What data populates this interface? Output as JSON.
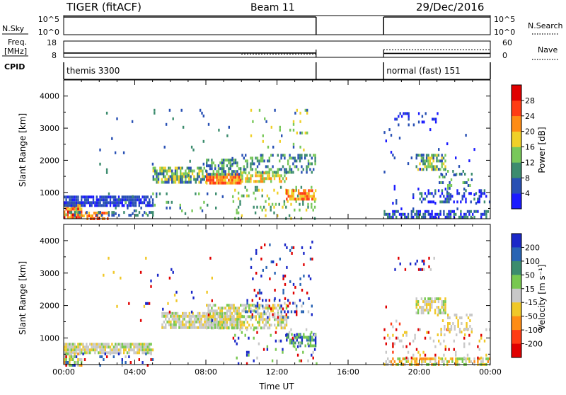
{
  "header": {
    "radar": "TIGER (fitACF)",
    "beam": "Beam 11",
    "date": "29/Dec/2016"
  },
  "top_panels": {
    "nsky_label": "N.Sky",
    "nsearch_label": "N.Search",
    "freq_label_1": "Freq.",
    "freq_label_2": "[MHz]",
    "nave_label": "Nave",
    "cpid_label": "CPID",
    "nsky_ticks": [
      "10^5",
      "10^0"
    ],
    "nsearch_ticks": [
      "10^5",
      "10^0"
    ],
    "freq_ticks": [
      "18",
      "8"
    ],
    "nave_ticks": [
      "60",
      "0"
    ],
    "cpid_segments": [
      {
        "label": "themis 3300",
        "start_h": 0.0,
        "end_h": 14.2
      },
      {
        "label": "normal (fast) 151",
        "start_h": 18.0,
        "end_h": 24.0
      }
    ],
    "freq_data": [
      {
        "start_h": 0.0,
        "end_h": 10.0,
        "value": 10.2
      },
      {
        "start_h": 10.0,
        "end_h": 14.2,
        "value": 10.2
      },
      {
        "start_h": 18.0,
        "end_h": 24.0,
        "value": 10.0
      }
    ],
    "nave_data": [
      {
        "start_h": 10.0,
        "end_h": 14.2,
        "value": 12
      },
      {
        "start_h": 18.0,
        "end_h": 24.0,
        "value": 28
      }
    ]
  },
  "chart_data": [
    {
      "type": "heatmap",
      "name": "power",
      "ylabel": "Slant Range [km]",
      "ylim": [
        180,
        4500
      ],
      "yticks": [
        "1000",
        "2000",
        "3000",
        "4000"
      ],
      "ytick_values": [
        1000,
        2000,
        3000,
        4000
      ],
      "x_range_hours": [
        0,
        24
      ],
      "colorbar_label": "Power [dB]",
      "colorbar_ticks": [
        "4",
        "8",
        "12",
        "16",
        "20",
        "24",
        "28"
      ],
      "colorbar_colors": [
        "#1a1aff",
        "#2850b4",
        "#3c8c6e",
        "#78c85a",
        "#f0d028",
        "#ff8c14",
        "#ff3c14",
        "#e00000"
      ],
      "scatter_regions": [
        {
          "t0": 0.0,
          "t1": 1.0,
          "r0": 200,
          "r1": 700,
          "cls": [
            7,
            6,
            5,
            4,
            3
          ],
          "dens": 0.9
        },
        {
          "t0": 1.0,
          "t1": 2.5,
          "r0": 200,
          "r1": 400,
          "cls": [
            6,
            5,
            4
          ],
          "dens": 0.6
        },
        {
          "t0": 0.0,
          "t1": 5.0,
          "r0": 600,
          "r1": 900,
          "cls": [
            1,
            0,
            1
          ],
          "dens": 0.8
        },
        {
          "t0": 0.2,
          "t1": 5.0,
          "r0": 280,
          "r1": 420,
          "cls": [
            1,
            2
          ],
          "dens": 0.35
        },
        {
          "t0": 2.5,
          "t1": 9.5,
          "r0": 300,
          "r1": 1000,
          "cls": [
            1,
            2,
            3
          ],
          "dens": 0.05
        },
        {
          "t0": 5.0,
          "t1": 8.0,
          "r0": 1300,
          "r1": 1800,
          "cls": [
            1,
            2,
            3,
            4
          ],
          "dens": 0.7
        },
        {
          "t0": 8.0,
          "t1": 10.0,
          "r0": 1300,
          "r1": 1600,
          "cls": [
            6,
            5,
            4
          ],
          "dens": 0.85
        },
        {
          "t0": 8.0,
          "t1": 10.0,
          "r0": 1600,
          "r1": 2050,
          "cls": [
            1,
            2,
            3
          ],
          "dens": 0.6
        },
        {
          "t0": 10.0,
          "t1": 12.5,
          "r0": 1300,
          "r1": 1650,
          "cls": [
            5,
            4,
            3
          ],
          "dens": 0.6
        },
        {
          "t0": 10.0,
          "t1": 14.2,
          "r0": 1650,
          "r1": 2200,
          "cls": [
            1,
            2,
            3
          ],
          "dens": 0.35
        },
        {
          "t0": 9.5,
          "t1": 14.2,
          "r0": 200,
          "r1": 1200,
          "cls": [
            3,
            4,
            2
          ],
          "dens": 0.12
        },
        {
          "t0": 12.5,
          "t1": 14.2,
          "r0": 800,
          "r1": 1100,
          "cls": [
            6,
            5,
            4
          ],
          "dens": 0.7
        },
        {
          "t0": 10.5,
          "t1": 13.8,
          "r0": 2300,
          "r1": 3600,
          "cls": [
            3,
            4,
            1
          ],
          "dens": 0.07
        },
        {
          "t0": 2.0,
          "t1": 9.5,
          "r0": 1500,
          "r1": 3600,
          "cls": [
            1,
            2
          ],
          "dens": 0.025
        },
        {
          "t0": 18.0,
          "t1": 24.0,
          "r0": 200,
          "r1": 450,
          "cls": [
            0,
            1,
            2
          ],
          "dens": 0.55
        },
        {
          "t0": 20.0,
          "t1": 24.0,
          "r0": 700,
          "r1": 1100,
          "cls": [
            0,
            1,
            2
          ],
          "dens": 0.35
        },
        {
          "t0": 19.8,
          "t1": 21.5,
          "r0": 1700,
          "r1": 2200,
          "cls": [
            3,
            2,
            4,
            1
          ],
          "dens": 0.65
        },
        {
          "t0": 21.0,
          "t1": 23.0,
          "r0": 1100,
          "r1": 1700,
          "cls": [
            1,
            2,
            3
          ],
          "dens": 0.2
        },
        {
          "t0": 18.6,
          "t1": 21.0,
          "r0": 3100,
          "r1": 3500,
          "cls": [
            0,
            1
          ],
          "dens": 0.18
        },
        {
          "t0": 18.0,
          "t1": 23.5,
          "r0": 500,
          "r1": 3000,
          "cls": [
            0,
            1
          ],
          "dens": 0.025
        }
      ]
    },
    {
      "type": "heatmap",
      "name": "velocity",
      "ylabel": "Slant Range [km]",
      "xlabel": "Time UT",
      "ylim": [
        180,
        4500
      ],
      "yticks": [
        "1000",
        "2000",
        "3000",
        "4000"
      ],
      "ytick_values": [
        1000,
        2000,
        3000,
        4000
      ],
      "x_range_hours": [
        0,
        24
      ],
      "xticks": [
        "00:00",
        "04:00",
        "08:00",
        "12:00",
        "16:00",
        "20:00",
        "00:00"
      ],
      "xtick_values": [
        0,
        4,
        8,
        12,
        16,
        20,
        24
      ],
      "colorbar_label": "Velocity [m s⁻¹]",
      "colorbar_ticks": [
        "200",
        "100",
        "50",
        "15",
        "-15",
        "-50",
        "-100",
        "-200"
      ],
      "colorbar_colors": [
        "#1a28c8",
        "#2864b4",
        "#3c8c6e",
        "#78c850",
        "#c8c8c8",
        "#f0c828",
        "#ff8c14",
        "#ff3c14",
        "#e00000"
      ],
      "scatter_regions": [
        {
          "t0": 0.0,
          "t1": 5.0,
          "r0": 550,
          "r1": 850,
          "cls": [
            4,
            4,
            4,
            5,
            3
          ],
          "dens": 0.8
        },
        {
          "t0": 0.0,
          "t1": 1.0,
          "r0": 200,
          "r1": 550,
          "cls": [
            4,
            5,
            6,
            3
          ],
          "dens": 0.6
        },
        {
          "t0": 0.0,
          "t1": 5.0,
          "r0": 200,
          "r1": 550,
          "cls": [
            4,
            0,
            8,
            1
          ],
          "dens": 0.15
        },
        {
          "t0": 5.5,
          "t1": 10.0,
          "r0": 1300,
          "r1": 1800,
          "cls": [
            4,
            4,
            4,
            3,
            5
          ],
          "dens": 0.8
        },
        {
          "t0": 8.0,
          "t1": 12.5,
          "r0": 1300,
          "r1": 2050,
          "cls": [
            4,
            4,
            5,
            3
          ],
          "dens": 0.6
        },
        {
          "t0": 10.0,
          "t1": 14.2,
          "r0": 1650,
          "r1": 2200,
          "cls": [
            4,
            0,
            1,
            8
          ],
          "dens": 0.2
        },
        {
          "t0": 12.5,
          "t1": 14.2,
          "r0": 800,
          "r1": 1150,
          "cls": [
            2,
            1,
            3,
            0
          ],
          "dens": 0.6
        },
        {
          "t0": 9.5,
          "t1": 14.2,
          "r0": 200,
          "r1": 1300,
          "cls": [
            3,
            0,
            8,
            4
          ],
          "dens": 0.1
        },
        {
          "t0": 10.5,
          "t1": 14.0,
          "r0": 2200,
          "r1": 4000,
          "cls": [
            0,
            1,
            8
          ],
          "dens": 0.07
        },
        {
          "t0": 2.0,
          "t1": 9.5,
          "r0": 1500,
          "r1": 3500,
          "cls": [
            0,
            8,
            5
          ],
          "dens": 0.02
        },
        {
          "t0": 18.0,
          "t1": 24.0,
          "r0": 200,
          "r1": 400,
          "cls": [
            4,
            5,
            6,
            3
          ],
          "dens": 0.55
        },
        {
          "t0": 18.0,
          "t1": 24.0,
          "r0": 400,
          "r1": 1300,
          "cls": [
            4,
            5,
            8
          ],
          "dens": 0.1
        },
        {
          "t0": 19.8,
          "t1": 21.5,
          "r0": 1750,
          "r1": 2250,
          "cls": [
            4,
            3,
            5
          ],
          "dens": 0.6
        },
        {
          "t0": 21.0,
          "t1": 23.0,
          "r0": 1100,
          "r1": 1750,
          "cls": [
            4,
            5
          ],
          "dens": 0.3
        },
        {
          "t0": 18.6,
          "t1": 21.0,
          "r0": 3100,
          "r1": 3500,
          "cls": [
            0,
            8,
            4
          ],
          "dens": 0.18
        },
        {
          "t0": 18.0,
          "t1": 19.0,
          "r0": 600,
          "r1": 2000,
          "cls": [
            8,
            7,
            4
          ],
          "dens": 0.06
        }
      ]
    }
  ]
}
